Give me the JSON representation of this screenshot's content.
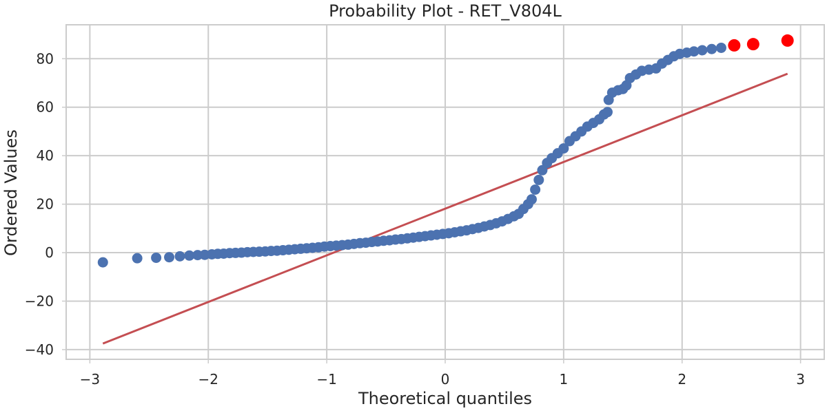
{
  "chart_data": {
    "type": "scatter",
    "title": "Probability Plot - RET_V804L",
    "xlabel": "Theoretical quantiles",
    "ylabel": "Ordered Values",
    "xlim": [
      -3.2,
      3.2
    ],
    "ylim": [
      -44,
      94
    ],
    "x_ticks": [
      -3,
      -2,
      -1,
      0,
      1,
      2,
      3
    ],
    "y_ticks": [
      -40,
      -20,
      0,
      20,
      40,
      60,
      80
    ],
    "x_tick_labels": [
      "−3",
      "−2",
      "−1",
      "0",
      "1",
      "2",
      "3"
    ],
    "y_tick_labels": [
      "−40",
      "−20",
      "0",
      "20",
      "40",
      "60",
      "80"
    ],
    "grid": true,
    "colors": {
      "points": "#4c72b0",
      "highlight": "#ff0000",
      "fit_line": "#c44e52"
    },
    "series": [
      {
        "values": [
          [
            -2.89,
            -4.0
          ],
          [
            -2.6,
            -2.3
          ],
          [
            -2.44,
            -2.1
          ],
          [
            -2.33,
            -1.9
          ],
          [
            -2.24,
            -1.5
          ],
          [
            -2.16,
            -1.2
          ],
          [
            -2.09,
            -1.0
          ],
          [
            -2.03,
            -0.9
          ],
          [
            -1.97,
            -0.7
          ],
          [
            -1.92,
            -0.5
          ],
          [
            -1.87,
            -0.4
          ],
          [
            -1.82,
            -0.2
          ],
          [
            -1.77,
            -0.1
          ],
          [
            -1.72,
            0.0
          ],
          [
            -1.67,
            0.2
          ],
          [
            -1.62,
            0.3
          ],
          [
            -1.57,
            0.4
          ],
          [
            -1.52,
            0.5
          ],
          [
            -1.47,
            0.7
          ],
          [
            -1.42,
            0.8
          ],
          [
            -1.37,
            1.0
          ],
          [
            -1.32,
            1.2
          ],
          [
            -1.27,
            1.4
          ],
          [
            -1.22,
            1.6
          ],
          [
            -1.17,
            1.8
          ],
          [
            -1.12,
            2.0
          ],
          [
            -1.07,
            2.2
          ],
          [
            -1.02,
            2.5
          ],
          [
            -0.97,
            2.7
          ],
          [
            -0.92,
            2.9
          ],
          [
            -0.87,
            3.1
          ],
          [
            -0.82,
            3.3
          ],
          [
            -0.77,
            3.6
          ],
          [
            -0.72,
            3.9
          ],
          [
            -0.67,
            4.1
          ],
          [
            -0.62,
            4.4
          ],
          [
            -0.57,
            4.6
          ],
          [
            -0.52,
            4.9
          ],
          [
            -0.47,
            5.1
          ],
          [
            -0.42,
            5.4
          ],
          [
            -0.37,
            5.6
          ],
          [
            -0.32,
            5.9
          ],
          [
            -0.27,
            6.2
          ],
          [
            -0.22,
            6.5
          ],
          [
            -0.17,
            6.8
          ],
          [
            -0.12,
            7.1
          ],
          [
            -0.07,
            7.4
          ],
          [
            -0.02,
            7.7
          ],
          [
            0.03,
            8.0
          ],
          [
            0.08,
            8.4
          ],
          [
            0.13,
            8.8
          ],
          [
            0.18,
            9.2
          ],
          [
            0.23,
            9.7
          ],
          [
            0.28,
            10.2
          ],
          [
            0.33,
            10.8
          ],
          [
            0.38,
            11.4
          ],
          [
            0.43,
            12.1
          ],
          [
            0.48,
            12.9
          ],
          [
            0.53,
            13.9
          ],
          [
            0.58,
            15.0
          ],
          [
            0.62,
            16.0
          ],
          [
            0.66,
            18.0
          ],
          [
            0.7,
            20.0
          ],
          [
            0.73,
            22.0
          ],
          [
            0.76,
            26.0
          ],
          [
            0.79,
            30.0
          ],
          [
            0.82,
            34.0
          ],
          [
            0.86,
            37.0
          ],
          [
            0.9,
            39.0
          ],
          [
            0.95,
            41.0
          ],
          [
            1.0,
            43.0
          ],
          [
            1.05,
            46.0
          ],
          [
            1.1,
            48.0
          ],
          [
            1.15,
            50.0
          ],
          [
            1.2,
            52.0
          ],
          [
            1.25,
            53.5
          ],
          [
            1.3,
            55.0
          ],
          [
            1.34,
            57.0
          ],
          [
            1.37,
            58.0
          ],
          [
            1.38,
            63.0
          ],
          [
            1.41,
            66.0
          ],
          [
            1.46,
            67.0
          ],
          [
            1.5,
            67.5
          ],
          [
            1.53,
            69.0
          ],
          [
            1.56,
            72.0
          ],
          [
            1.61,
            73.5
          ],
          [
            1.66,
            75.0
          ],
          [
            1.72,
            75.5
          ],
          [
            1.78,
            76.0
          ],
          [
            1.83,
            78.0
          ],
          [
            1.88,
            79.5
          ],
          [
            1.93,
            81.0
          ],
          [
            1.98,
            82.0
          ],
          [
            2.04,
            82.5
          ],
          [
            2.1,
            83.0
          ],
          [
            2.17,
            83.5
          ],
          [
            2.25,
            84.0
          ],
          [
            2.33,
            84.5
          ]
        ]
      },
      {
        "values": [
          [
            2.44,
            85.5
          ],
          [
            2.6,
            86.0
          ],
          [
            2.89,
            87.5
          ]
        ]
      }
    ],
    "fit_line": {
      "x": [
        -2.89,
        2.89
      ],
      "y": [
        -37.5,
        73.8
      ]
    }
  }
}
